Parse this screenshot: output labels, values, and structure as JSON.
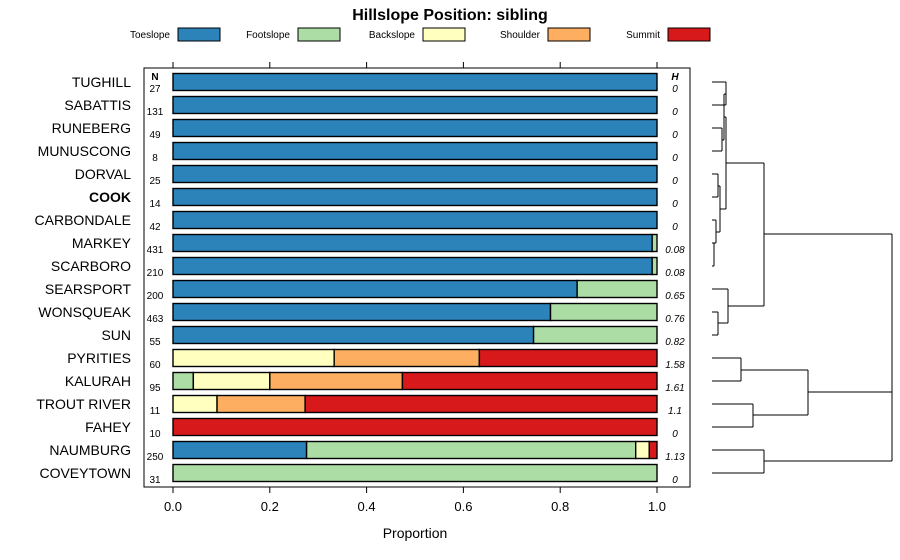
{
  "chart_data": {
    "type": "bar",
    "subtype": "stacked-horizontal-proportion",
    "title": "Hillslope Position: sibling",
    "xlabel": "Proportion",
    "ylabel": "",
    "xlim": [
      0,
      1
    ],
    "x_ticks": [
      0.0,
      0.2,
      0.4,
      0.6,
      0.8,
      1.0
    ],
    "x_tick_labels": [
      "0.0",
      "0.2",
      "0.4",
      "0.6",
      "0.8",
      "1.0"
    ],
    "n_header": "N",
    "h_header": "H",
    "legend_position": "top",
    "legend": [
      {
        "name": "Toeslope",
        "color": "#2b83ba"
      },
      {
        "name": "Footslope",
        "color": "#abdda4"
      },
      {
        "name": "Backslope",
        "color": "#ffffbf"
      },
      {
        "name": "Shoulder",
        "color": "#fdae61"
      },
      {
        "name": "Summit",
        "color": "#d7191c"
      }
    ],
    "highlighted_series": "COOK",
    "series": [
      {
        "name": "TUGHILL",
        "n": "27",
        "h": "0",
        "values": [
          1,
          0,
          0,
          0,
          0
        ]
      },
      {
        "name": "SABATTIS",
        "n": "131",
        "h": "0",
        "values": [
          1,
          0,
          0,
          0,
          0
        ]
      },
      {
        "name": "RUNEBERG",
        "n": "49",
        "h": "0",
        "values": [
          1,
          0,
          0,
          0,
          0
        ]
      },
      {
        "name": "MUNUSCONG",
        "n": "8",
        "h": "0",
        "values": [
          1,
          0,
          0,
          0,
          0
        ]
      },
      {
        "name": "DORVAL",
        "n": "25",
        "h": "0",
        "values": [
          1,
          0,
          0,
          0,
          0
        ]
      },
      {
        "name": "COOK",
        "n": "14",
        "h": "0",
        "values": [
          1,
          0,
          0,
          0,
          0
        ]
      },
      {
        "name": "CARBONDALE",
        "n": "42",
        "h": "0",
        "values": [
          1,
          0,
          0,
          0,
          0
        ]
      },
      {
        "name": "MARKEY",
        "n": "431",
        "h": "0.08",
        "values": [
          0.99,
          0.01,
          0,
          0,
          0
        ]
      },
      {
        "name": "SCARBORO",
        "n": "210",
        "h": "0.08",
        "values": [
          0.99,
          0.01,
          0,
          0,
          0
        ]
      },
      {
        "name": "SEARSPORT",
        "n": "200",
        "h": "0.65",
        "values": [
          0.835,
          0.165,
          0,
          0,
          0
        ]
      },
      {
        "name": "WONSQUEAK",
        "n": "463",
        "h": "0.76",
        "values": [
          0.78,
          0.22,
          0,
          0,
          0
        ]
      },
      {
        "name": "SUN",
        "n": "55",
        "h": "0.82",
        "values": [
          0.745,
          0.255,
          0,
          0,
          0
        ]
      },
      {
        "name": "PYRITIES",
        "n": "60",
        "h": "1.58",
        "values": [
          0,
          0,
          0.333,
          0.3,
          0.367
        ]
      },
      {
        "name": "KALURAH",
        "n": "95",
        "h": "1.61",
        "values": [
          0,
          0.042,
          0.158,
          0.274,
          0.526
        ]
      },
      {
        "name": "TROUT RIVER",
        "n": "11",
        "h": "1.1",
        "values": [
          0,
          0,
          0.091,
          0.182,
          0.727
        ]
      },
      {
        "name": "FAHEY",
        "n": "10",
        "h": "0",
        "values": [
          0,
          0,
          0,
          0,
          1
        ]
      },
      {
        "name": "NAUMBURG",
        "n": "250",
        "h": "1.13",
        "values": [
          0.276,
          0.68,
          0.028,
          0,
          0.016
        ]
      },
      {
        "name": "COVEYTOWN",
        "n": "31",
        "h": "0",
        "values": [
          0,
          1,
          0,
          0,
          0
        ]
      }
    ]
  }
}
